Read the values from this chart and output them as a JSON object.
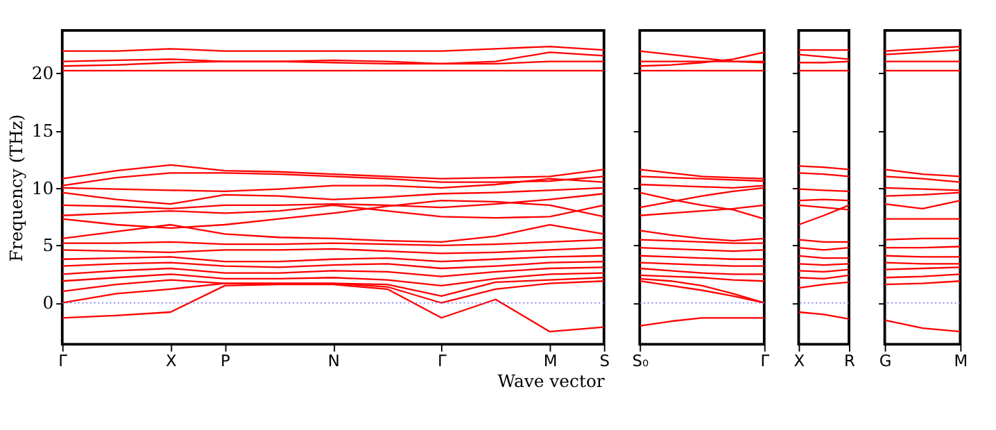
{
  "chart_data": [
    {
      "type": "line",
      "ylabel": "Frequency (THz)",
      "xlabel": "Wave vector",
      "ylim": [
        -3.6,
        23.7
      ],
      "yticks": [
        0,
        5,
        10,
        15,
        20
      ],
      "categories": [
        "Γ",
        null,
        "X",
        "P",
        null,
        "N",
        null,
        "Γ",
        null,
        "M",
        "S"
      ],
      "grid": false,
      "legend": false,
      "line_style": "solid",
      "marker": "none",
      "ref_lines": [
        {
          "axis": "y",
          "value": 0,
          "color": "#6666ff",
          "line_style": "dotted"
        }
      ],
      "series": [
        {
          "color": "#ff0000",
          "values": [
            21.9,
            21.9,
            22.1,
            21.9,
            21.9,
            21.9,
            21.9,
            21.9,
            22.1,
            22.3,
            22.0
          ]
        },
        {
          "color": "#ff0000",
          "values": [
            21.0,
            21.1,
            21.2,
            21.0,
            21.0,
            21.1,
            21.0,
            20.8,
            21.0,
            21.8,
            21.5
          ]
        },
        {
          "color": "#ff0000",
          "values": [
            20.6,
            20.7,
            20.9,
            21.0,
            21.0,
            20.9,
            20.8,
            20.8,
            20.8,
            21.0,
            21.0
          ]
        },
        {
          "color": "#ff0000",
          "values": [
            20.2,
            20.2,
            20.2,
            20.2,
            20.2,
            20.2,
            20.2,
            20.2,
            20.2,
            20.2,
            20.2
          ]
        },
        {
          "color": "#ff0000",
          "values": [
            10.8,
            11.5,
            12.0,
            11.5,
            11.4,
            11.2,
            11.0,
            10.8,
            10.9,
            11.0,
            11.6
          ]
        },
        {
          "color": "#ff0000",
          "values": [
            10.2,
            10.9,
            11.3,
            11.3,
            11.2,
            11.0,
            10.8,
            10.5,
            10.5,
            10.6,
            11.0
          ]
        },
        {
          "color": "#ff0000",
          "values": [
            10.0,
            9.9,
            9.8,
            9.7,
            9.9,
            10.2,
            10.2,
            10.0,
            10.3,
            10.8,
            10.5
          ]
        },
        {
          "color": "#ff0000",
          "values": [
            9.6,
            9.0,
            8.6,
            9.4,
            9.3,
            9.0,
            9.2,
            9.5,
            9.6,
            9.8,
            10.0
          ]
        },
        {
          "color": "#ff0000",
          "values": [
            8.5,
            8.4,
            8.2,
            8.5,
            8.5,
            8.6,
            8.5,
            8.3,
            8.6,
            9.0,
            9.5
          ]
        },
        {
          "color": "#ff0000",
          "values": [
            7.6,
            7.8,
            8.0,
            7.8,
            8.0,
            8.5,
            8.0,
            7.5,
            7.4,
            7.5,
            8.5
          ]
        },
        {
          "color": "#ff0000",
          "values": [
            7.3,
            6.8,
            6.5,
            6.8,
            7.3,
            7.8,
            8.4,
            8.9,
            8.8,
            8.5,
            7.5
          ]
        },
        {
          "color": "#ff0000",
          "values": [
            5.6,
            6.2,
            6.8,
            6.0,
            5.7,
            5.6,
            5.4,
            5.3,
            5.8,
            6.8,
            6.0
          ]
        },
        {
          "color": "#ff0000",
          "values": [
            5.2,
            5.2,
            5.3,
            5.1,
            5.1,
            5.2,
            5.1,
            5.0,
            5.1,
            5.3,
            5.5
          ]
        },
        {
          "color": "#ff0000",
          "values": [
            4.6,
            4.5,
            4.4,
            4.6,
            4.6,
            4.7,
            4.5,
            4.3,
            4.4,
            4.6,
            4.8
          ]
        },
        {
          "color": "#ff0000",
          "values": [
            3.8,
            3.9,
            4.0,
            3.6,
            3.6,
            3.8,
            3.9,
            3.6,
            3.8,
            4.0,
            4.1
          ]
        },
        {
          "color": "#ff0000",
          "values": [
            3.2,
            3.4,
            3.5,
            3.2,
            3.1,
            3.3,
            3.4,
            3.0,
            3.2,
            3.5,
            3.6
          ]
        },
        {
          "color": "#ff0000",
          "values": [
            2.5,
            2.8,
            3.0,
            2.6,
            2.6,
            2.8,
            2.7,
            2.3,
            2.7,
            3.0,
            3.1
          ]
        },
        {
          "color": "#ff0000",
          "values": [
            1.9,
            2.2,
            2.5,
            2.1,
            2.1,
            2.2,
            2.0,
            1.5,
            2.1,
            2.5,
            2.6
          ]
        },
        {
          "color": "#ff0000",
          "values": [
            1.0,
            1.6,
            2.0,
            1.7,
            1.7,
            1.7,
            1.6,
            0.6,
            1.8,
            2.0,
            2.2
          ]
        },
        {
          "color": "#ff0000",
          "values": [
            0,
            0.8,
            1.2,
            1.7,
            1.7,
            1.7,
            1.4,
            0,
            1.2,
            1.7,
            1.9
          ]
        },
        {
          "color": "#ff0000",
          "values": [
            -1.3,
            -1.1,
            -0.8,
            1.5,
            1.6,
            1.6,
            1.2,
            -1.3,
            0.3,
            -2.5,
            -2.1
          ]
        }
      ]
    },
    {
      "type": "line",
      "ylim": [
        -3.6,
        23.7
      ],
      "yticks": [
        0,
        5,
        10,
        15,
        20
      ],
      "tick_labels": "x",
      "categories": [
        "S₀",
        null,
        null,
        null,
        "Γ"
      ],
      "grid": false,
      "legend": false,
      "line_style": "solid",
      "marker": "none",
      "ref_lines": [
        {
          "axis": "y",
          "value": 0,
          "color": "#6666ff",
          "line_style": "dotted"
        }
      ],
      "series": [
        {
          "color": "#ff0000",
          "values": [
            21.9,
            21.6,
            21.3,
            21.0,
            20.9
          ]
        },
        {
          "color": "#ff0000",
          "values": [
            21.0,
            21.0,
            21.0,
            21.0,
            21.0
          ]
        },
        {
          "color": "#ff0000",
          "values": [
            20.6,
            20.7,
            20.9,
            21.2,
            21.8
          ]
        },
        {
          "color": "#ff0000",
          "values": [
            20.2,
            20.2,
            20.2,
            20.2,
            20.2
          ]
        },
        {
          "color": "#ff0000",
          "values": [
            11.6,
            11.3,
            11.0,
            10.9,
            10.8
          ]
        },
        {
          "color": "#ff0000",
          "values": [
            11.0,
            10.9,
            10.8,
            10.7,
            10.6
          ]
        },
        {
          "color": "#ff0000",
          "values": [
            10.3,
            10.2,
            10.1,
            10.0,
            10.2
          ]
        },
        {
          "color": "#ff0000",
          "values": [
            9.6,
            9.0,
            8.5,
            8.1,
            7.3
          ]
        },
        {
          "color": "#ff0000",
          "values": [
            8.3,
            8.8,
            9.3,
            9.7,
            10.0
          ]
        },
        {
          "color": "#ff0000",
          "values": [
            7.6,
            7.8,
            8.0,
            8.2,
            8.5
          ]
        },
        {
          "color": "#ff0000",
          "values": [
            6.3,
            5.9,
            5.6,
            5.4,
            5.6
          ]
        },
        {
          "color": "#ff0000",
          "values": [
            5.5,
            5.4,
            5.3,
            5.2,
            5.2
          ]
        },
        {
          "color": "#ff0000",
          "values": [
            4.8,
            4.7,
            4.6,
            4.5,
            4.6
          ]
        },
        {
          "color": "#ff0000",
          "values": [
            4.1,
            4.0,
            3.9,
            3.8,
            3.8
          ]
        },
        {
          "color": "#ff0000",
          "values": [
            3.5,
            3.4,
            3.3,
            3.2,
            3.2
          ]
        },
        {
          "color": "#ff0000",
          "values": [
            3.0,
            2.8,
            2.6,
            2.5,
            2.5
          ]
        },
        {
          "color": "#ff0000",
          "values": [
            2.4,
            2.3,
            2.2,
            2.0,
            1.9
          ]
        },
        {
          "color": "#ff0000",
          "values": [
            1.9,
            1.5,
            1.1,
            0.6,
            0
          ]
        },
        {
          "color": "#ff0000",
          "values": [
            2.1,
            1.9,
            1.5,
            0.8,
            0
          ]
        },
        {
          "color": "#ff0000",
          "values": [
            -2.0,
            -1.6,
            -1.3,
            -1.3,
            -1.3
          ]
        }
      ]
    },
    {
      "type": "line",
      "ylim": [
        -3.6,
        23.7
      ],
      "yticks": [
        0,
        5,
        10,
        15,
        20
      ],
      "tick_labels": "x",
      "categories": [
        "X",
        null,
        "R"
      ],
      "grid": false,
      "legend": false,
      "line_style": "solid",
      "marker": "none",
      "ref_lines": [
        {
          "axis": "y",
          "value": 0,
          "color": "#6666ff",
          "line_style": "dotted"
        }
      ],
      "series": [
        {
          "color": "#ff0000",
          "values": [
            22.0,
            22.0,
            22.0
          ]
        },
        {
          "color": "#ff0000",
          "values": [
            21.6,
            21.4,
            21.2
          ]
        },
        {
          "color": "#ff0000",
          "values": [
            20.9,
            20.9,
            21.0
          ]
        },
        {
          "color": "#ff0000",
          "values": [
            20.2,
            20.2,
            20.2
          ]
        },
        {
          "color": "#ff0000",
          "values": [
            11.9,
            11.8,
            11.6
          ]
        },
        {
          "color": "#ff0000",
          "values": [
            11.3,
            11.2,
            11.0
          ]
        },
        {
          "color": "#ff0000",
          "values": [
            9.9,
            9.8,
            9.7
          ]
        },
        {
          "color": "#ff0000",
          "values": [
            8.9,
            9.0,
            8.9
          ]
        },
        {
          "color": "#ff0000",
          "values": [
            8.5,
            8.3,
            8.1
          ]
        },
        {
          "color": "#ff0000",
          "values": [
            6.8,
            7.6,
            8.5
          ]
        },
        {
          "color": "#ff0000",
          "values": [
            5.5,
            5.3,
            5.3
          ]
        },
        {
          "color": "#ff0000",
          "values": [
            4.8,
            4.6,
            4.8
          ]
        },
        {
          "color": "#ff0000",
          "values": [
            4.1,
            3.9,
            3.9
          ]
        },
        {
          "color": "#ff0000",
          "values": [
            3.4,
            3.3,
            3.4
          ]
        },
        {
          "color": "#ff0000",
          "values": [
            2.8,
            2.7,
            2.9
          ]
        },
        {
          "color": "#ff0000",
          "values": [
            2.2,
            2.1,
            2.4
          ]
        },
        {
          "color": "#ff0000",
          "values": [
            1.3,
            1.6,
            1.8
          ]
        },
        {
          "color": "#ff0000",
          "values": [
            -0.8,
            -1.0,
            -1.4
          ]
        }
      ]
    },
    {
      "type": "line",
      "ylim": [
        -3.6,
        23.7
      ],
      "yticks": [
        0,
        5,
        10,
        15,
        20
      ],
      "tick_labels": "x",
      "categories": [
        "G",
        null,
        "M"
      ],
      "grid": false,
      "legend": false,
      "line_style": "solid",
      "marker": "none",
      "ref_lines": [
        {
          "axis": "y",
          "value": 0,
          "color": "#6666ff",
          "line_style": "dotted"
        }
      ],
      "series": [
        {
          "color": "#ff0000",
          "values": [
            21.9,
            22.1,
            22.3
          ]
        },
        {
          "color": "#ff0000",
          "values": [
            21.6,
            21.8,
            22.0
          ]
        },
        {
          "color": "#ff0000",
          "values": [
            21.0,
            21.0,
            21.0
          ]
        },
        {
          "color": "#ff0000",
          "values": [
            20.2,
            20.2,
            20.2
          ]
        },
        {
          "color": "#ff0000",
          "values": [
            11.6,
            11.2,
            11.0
          ]
        },
        {
          "color": "#ff0000",
          "values": [
            11.0,
            10.8,
            10.5
          ]
        },
        {
          "color": "#ff0000",
          "values": [
            10.0,
            9.9,
            9.8
          ]
        },
        {
          "color": "#ff0000",
          "values": [
            9.3,
            9.4,
            9.6
          ]
        },
        {
          "color": "#ff0000",
          "values": [
            8.6,
            8.2,
            8.9
          ]
        },
        {
          "color": "#ff0000",
          "values": [
            7.3,
            7.3,
            7.3
          ]
        },
        {
          "color": "#ff0000",
          "values": [
            5.5,
            5.6,
            5.6
          ]
        },
        {
          "color": "#ff0000",
          "values": [
            4.8,
            4.8,
            4.9
          ]
        },
        {
          "color": "#ff0000",
          "values": [
            4.1,
            4.0,
            4.0
          ]
        },
        {
          "color": "#ff0000",
          "values": [
            3.5,
            3.4,
            3.4
          ]
        },
        {
          "color": "#ff0000",
          "values": [
            2.9,
            3.0,
            3.1
          ]
        },
        {
          "color": "#ff0000",
          "values": [
            2.2,
            2.3,
            2.5
          ]
        },
        {
          "color": "#ff0000",
          "values": [
            1.6,
            1.7,
            1.9
          ]
        },
        {
          "color": "#ff0000",
          "values": [
            -1.5,
            -2.2,
            -2.5
          ]
        }
      ]
    }
  ]
}
